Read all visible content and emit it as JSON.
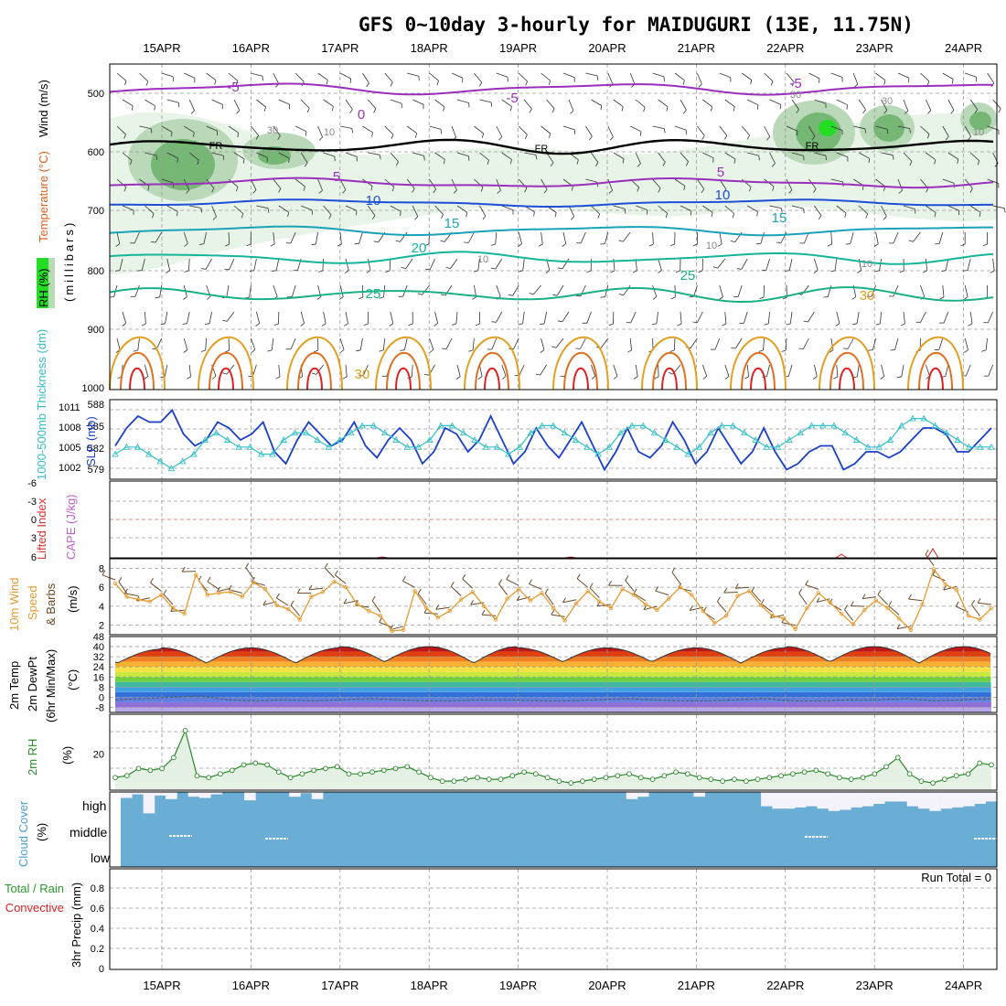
{
  "title": "GFS 0~10day 3-hourly for MAIDUGURI (13E, 11.75N)",
  "dates": [
    "15APR",
    "16APR",
    "17APR",
    "18APR",
    "19APR",
    "20APR",
    "21APR",
    "22APR",
    "23APR",
    "24APR"
  ],
  "colors": {
    "grid": "#9a9a9a",
    "purple": "#9b2fbd",
    "blue": "#1f4fd6",
    "teal": "#1aa2b8",
    "teal2": "#16b59a",
    "orange": "#e3a020",
    "darkorange": "#e07020",
    "red": "#e02020",
    "slp": "#1a3fcc",
    "thk": "#35c0c8",
    "wind10": "#e69a2e",
    "barb": "#6b4a2a",
    "rh2m": "#2a8a2a",
    "rhfill": "#e4f1e4",
    "cloud": "#6aaed6",
    "rhlight": "#e7f4e7",
    "rhmid": "#b9d9b9",
    "rhdark": "#76b776",
    "rhbright": "#22dd22"
  },
  "panels": {
    "upper": {
      "ylabel_rh": "RH (%)",
      "ylabel_temp": "Temperature (°C)",
      "ylabel_wind": "Wind (m/s)",
      "ylabel_mb": "(millibars)",
      "ticks": [
        "500",
        "600",
        "700",
        "800",
        "900",
        "1000"
      ],
      "contour_labels": [
        "-5",
        "-5",
        "-5",
        "0",
        "10",
        "30",
        "30",
        "30",
        "10",
        "FR",
        "FR",
        "FR",
        "5",
        "5",
        "10",
        "10",
        "15",
        "15",
        "20",
        "25",
        "25",
        "30",
        "30",
        "10",
        "10",
        "10"
      ]
    },
    "slp": {
      "ylabel_thk": "1000-500mb Thickness (dm)",
      "ylabel_slp": "SLP (mb)",
      "ticks_left": [
        "588",
        "585",
        "582",
        "579"
      ],
      "ticks_right": [
        "1011",
        "1008",
        "1005",
        "1002"
      ]
    },
    "cape": {
      "ylabel_li": "Lifted Index",
      "ylabel_cape": "CAPE (J/kg)",
      "ticks": [
        "-6",
        "-3",
        "0",
        "3",
        "6"
      ]
    },
    "wind10": {
      "ylabel1": "10m Wind",
      "ylabel2": "Speed",
      "ylabel3": "& Barbs",
      "ylabel_unit": "(m/s)",
      "ticks": [
        "8",
        "6",
        "4",
        "2"
      ]
    },
    "temp2m": {
      "ylabel1": "2m Temp",
      "ylabel2": "2m DewPt",
      "ylabel3": "(6hr Min/Max)",
      "ylabel_unit": "(°C)",
      "ticks": [
        "48",
        "40",
        "32",
        "24",
        "16",
        "8",
        "0",
        "-8"
      ]
    },
    "rh2m": {
      "ylabel": "2m RH",
      "ylabel_unit": "(%)",
      "ticks": [
        "20"
      ]
    },
    "cloud": {
      "ylabel": "Cloud Cover",
      "ylabel_unit": "(%)",
      "levels": [
        "high",
        "middle",
        "low"
      ]
    },
    "precip": {
      "ylabel1": "Total / Rain",
      "ylabel2": "Convective",
      "ylabel_unit": "3hr Precip (mm)",
      "ticks": [
        "0.8",
        "0.6",
        "0.4",
        "0.2",
        "0"
      ],
      "run_total": "Run Total = 0"
    }
  },
  "chart_data": [
    {
      "type": "line",
      "name": "Sea level pressure",
      "ylabel": "SLP (mb)",
      "ylim": [
        1000,
        1012
      ],
      "values": [
        1005,
        1008,
        1010,
        1009,
        1009,
        1011,
        1007,
        1005,
        1006,
        1009,
        1008,
        1006,
        1007,
        1009,
        1004,
        1002,
        1006,
        1009,
        1007,
        1005,
        1006,
        1009,
        1005,
        1003,
        1006,
        1008,
        1006,
        1002,
        1004,
        1008,
        1007,
        1004,
        1006,
        1010,
        1006,
        1002,
        1004,
        1008,
        1005,
        1003,
        1006,
        1009,
        1005,
        1001,
        1004,
        1008,
        1004,
        1003,
        1005,
        1009,
        1006,
        1002,
        1004,
        1008,
        1005,
        1002,
        1004,
        1008,
        1004,
        1001,
        1002,
        1004,
        1005,
        1005,
        1001,
        1002,
        1004,
        1004,
        1003,
        1004,
        1006,
        1008,
        1008,
        1007,
        1004,
        1004,
        1006,
        1008
      ]
    },
    {
      "type": "line",
      "name": "1000-500mb Thickness",
      "ylabel": "(dm)",
      "ylim": [
        578,
        588
      ],
      "values": [
        581,
        582,
        582,
        581,
        580,
        579,
        580,
        581,
        583,
        584,
        583,
        582,
        582,
        581,
        581,
        583,
        584,
        584,
        583,
        582,
        583,
        584,
        585,
        585,
        584,
        583,
        582,
        582,
        583,
        585,
        585,
        584,
        583,
        582,
        582,
        581,
        582,
        584,
        585,
        585,
        584,
        583,
        582,
        581,
        582,
        584,
        585,
        585,
        584,
        583,
        582,
        581,
        582,
        584,
        585,
        585,
        584,
        583,
        582,
        582,
        583,
        584,
        585,
        585,
        585,
        584,
        583,
        582,
        582,
        583,
        585,
        586,
        586,
        585,
        584,
        583,
        582,
        582,
        582
      ]
    },
    {
      "type": "line",
      "name": "10m wind speed",
      "ylabel": "(m/s)",
      "ylim": [
        1,
        9
      ],
      "values": [
        6.4,
        5,
        4.7,
        4.5,
        5.2,
        3.8,
        3.2,
        7.3,
        5.2,
        5.4,
        5.5,
        5,
        6.5,
        5.8,
        4.1,
        3.7,
        2.6,
        5,
        5.5,
        6.6,
        6,
        4.2,
        3.5,
        3,
        1.4,
        1.5,
        5.6,
        3.8,
        2.8,
        3.5,
        4.7,
        5.5,
        4,
        2.6,
        4.8,
        5.8,
        4.6,
        5.4,
        3.8,
        2.5,
        4.3,
        5.6,
        4.5,
        3.8,
        5.8,
        5.2,
        4.2,
        3.6,
        4.8,
        6,
        5.2,
        3.5,
        2.2,
        3,
        5.1,
        5.6,
        4.1,
        3,
        2.7,
        1.6,
        3.8,
        5.4,
        4.4,
        3.2,
        2.1,
        3.6,
        4.6,
        3.8,
        2.7,
        1.5,
        4.2,
        7.9,
        6.3,
        5.7,
        3,
        2.6,
        3.8
      ]
    },
    {
      "type": "area",
      "name": "2m Temp",
      "ylabel": "(°C)",
      "ylim": [
        -12,
        48
      ],
      "days_max": [
        38,
        39,
        39,
        40,
        40,
        39,
        39,
        39,
        40,
        40
      ],
      "days_min": [
        27,
        27,
        27,
        28,
        27,
        28,
        28,
        27,
        28,
        27
      ]
    },
    {
      "type": "line",
      "name": "2m DewPt",
      "ylabel": "(°C)",
      "ylim": [
        -12,
        48
      ],
      "values": [
        -2,
        -1,
        0,
        1,
        -2,
        -3,
        -2,
        -3,
        -2,
        -1,
        -2,
        -3,
        -3,
        -2,
        -2,
        -3,
        -3,
        -2,
        -1,
        -2,
        -3,
        -3,
        -2,
        -1,
        -3,
        -3,
        -2,
        -2,
        -1,
        -3,
        -2,
        -1
      ]
    },
    {
      "type": "line",
      "name": "2m RH",
      "ylabel": "(%)",
      "ylim": [
        0,
        42
      ],
      "values": [
        7,
        8,
        12,
        11,
        12,
        18,
        33,
        8,
        7,
        9,
        11,
        14,
        15,
        14,
        10,
        7,
        9,
        11,
        12,
        13,
        9,
        9,
        10,
        11,
        12,
        13,
        10,
        7,
        5,
        5,
        6,
        7,
        6,
        6,
        8,
        10,
        9,
        7,
        5,
        4,
        5,
        6,
        7,
        8,
        9,
        7,
        6,
        8,
        10,
        9,
        7,
        6,
        5,
        6,
        5,
        6,
        7,
        8,
        9,
        10,
        11,
        9,
        7,
        6,
        7,
        9,
        13,
        18,
        9,
        5,
        4,
        6,
        8,
        9,
        15,
        14
      ]
    },
    {
      "type": "bar",
      "name": "High cloud cover",
      "ylabel": "(%)",
      "ylim": [
        0,
        100
      ],
      "values": [
        75,
        90,
        10,
        85,
        70,
        100,
        80,
        75,
        90,
        100,
        100,
        65,
        100,
        100,
        100,
        80,
        95,
        70,
        100,
        100,
        100,
        100,
        100,
        100,
        100,
        100,
        100,
        100,
        100,
        100,
        100,
        100,
        100,
        100,
        100,
        100,
        100,
        100,
        100,
        100,
        100,
        100,
        100,
        100,
        100,
        70,
        80,
        100,
        100,
        100,
        100,
        80,
        100,
        100,
        100,
        100,
        100,
        40,
        30,
        30,
        35,
        40,
        30,
        20,
        25,
        35,
        40,
        50,
        60,
        60,
        40,
        30,
        20,
        30,
        35,
        40,
        50,
        60
      ]
    },
    {
      "type": "bar",
      "name": "3hr Precip",
      "ylabel": "3hr Precip (mm)",
      "ylim": [
        0,
        1
      ],
      "values": [
        0,
        0,
        0,
        0,
        0,
        0,
        0,
        0,
        0,
        0,
        0,
        0,
        0,
        0,
        0,
        0,
        0,
        0,
        0,
        0,
        0,
        0,
        0,
        0,
        0,
        0,
        0,
        0,
        0,
        0,
        0,
        0,
        0,
        0,
        0,
        0,
        0,
        0,
        0,
        0,
        0,
        0,
        0,
        0,
        0,
        0,
        0,
        0,
        0,
        0,
        0,
        0,
        0,
        0,
        0,
        0,
        0,
        0,
        0,
        0,
        0,
        0,
        0,
        0,
        0,
        0,
        0,
        0,
        0,
        0,
        0,
        0,
        0,
        0,
        0,
        0,
        0,
        0,
        0
      ]
    }
  ]
}
